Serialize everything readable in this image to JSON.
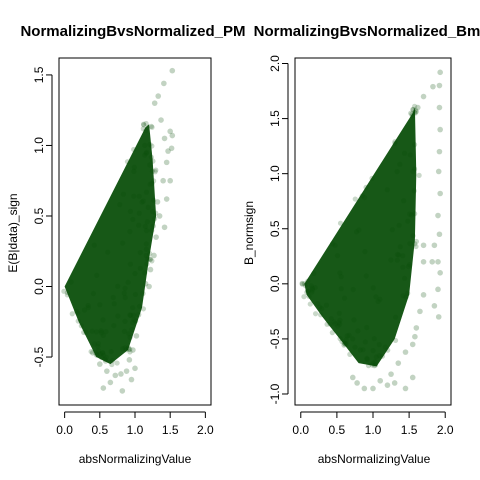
{
  "chart_data": [
    {
      "type": "scatter",
      "title": "NormalizingBvsNormalized_PM",
      "xlabel": "absNormalizingValue",
      "ylabel": "E(B|data)_sign",
      "xlim": [
        -0.08,
        2.08
      ],
      "ylim": [
        -0.84,
        1.62
      ],
      "xticks": [
        "0.0",
        "0.5",
        "1.0",
        "1.5",
        "2.0"
      ],
      "yticks": [
        "-0.5",
        "0.0",
        "0.5",
        "1.0",
        "1.5"
      ],
      "point_color": "#0b4f0b",
      "dense_region": {
        "description": "dense cloud between lines",
        "polygon": [
          [
            0.0,
            0.0
          ],
          [
            1.15,
            1.13
          ],
          [
            1.2,
            1.15
          ],
          [
            1.25,
            0.9
          ],
          [
            1.3,
            0.5
          ],
          [
            1.2,
            0.2
          ],
          [
            1.1,
            -0.15
          ],
          [
            0.9,
            -0.45
          ],
          [
            0.65,
            -0.55
          ],
          [
            0.45,
            -0.5
          ],
          [
            0.2,
            -0.25
          ],
          [
            0.0,
            0.0
          ]
        ]
      },
      "points": [
        [
          1.28,
          1.3
        ],
        [
          1.33,
          1.35
        ],
        [
          1.41,
          1.44
        ],
        [
          1.53,
          1.53
        ],
        [
          1.37,
          1.18
        ],
        [
          1.42,
          1.05
        ],
        [
          1.5,
          1.1
        ],
        [
          1.52,
          0.98
        ],
        [
          1.45,
          0.88
        ],
        [
          1.4,
          0.75
        ],
        [
          1.5,
          0.75
        ],
        [
          1.45,
          0.62
        ],
        [
          1.35,
          0.5
        ],
        [
          1.42,
          0.42
        ],
        [
          1.3,
          0.35
        ],
        [
          1.22,
          0.12
        ],
        [
          1.15,
          0.02
        ],
        [
          1.11,
          -0.05
        ],
        [
          1.05,
          -0.2
        ],
        [
          1.02,
          -0.35
        ],
        [
          0.97,
          -0.45
        ],
        [
          0.92,
          -0.52
        ],
        [
          0.88,
          -0.6
        ],
        [
          0.8,
          -0.62
        ],
        [
          0.72,
          -0.63
        ],
        [
          0.65,
          -0.68
        ],
        [
          0.6,
          -0.6
        ],
        [
          0.55,
          -0.72
        ],
        [
          0.82,
          -0.74
        ],
        [
          0.95,
          -0.66
        ],
        [
          1.0,
          -0.58
        ],
        [
          1.2,
          0.0
        ],
        [
          0.5,
          -0.55
        ],
        [
          0.4,
          -0.47
        ],
        [
          1.27,
          0.22
        ],
        [
          1.32,
          0.6
        ],
        [
          1.47,
          0.96
        ],
        [
          1.53,
          1.07
        ]
      ]
    },
    {
      "type": "scatter",
      "title": "NormalizingBvsNormalized_BmP",
      "xlabel": "absNormalizingValue",
      "ylabel": "B_normsign",
      "xlim": [
        -0.08,
        2.08
      ],
      "ylim": [
        -1.1,
        2.05
      ],
      "xticks": [
        "0.0",
        "0.5",
        "1.0",
        "1.5",
        "2.0"
      ],
      "yticks": [
        "-1.0",
        "-0.5",
        "0.0",
        "0.5",
        "1.0",
        "1.5",
        "2.0"
      ],
      "point_color": "#0b4f0b",
      "dense_region": {
        "description": "dense cloud between lines",
        "polygon": [
          [
            0.05,
            0.0
          ],
          [
            1.55,
            1.55
          ],
          [
            1.58,
            1.6
          ],
          [
            1.6,
            1.0
          ],
          [
            1.58,
            0.4
          ],
          [
            1.5,
            -0.1
          ],
          [
            1.3,
            -0.5
          ],
          [
            1.05,
            -0.75
          ],
          [
            0.8,
            -0.72
          ],
          [
            0.6,
            -0.55
          ],
          [
            0.3,
            -0.3
          ],
          [
            0.08,
            -0.1
          ],
          [
            0.05,
            0.0
          ]
        ]
      },
      "points": [
        [
          1.62,
          1.6
        ],
        [
          1.7,
          1.7
        ],
        [
          1.83,
          1.79
        ],
        [
          1.93,
          1.92
        ],
        [
          1.92,
          1.8
        ],
        [
          1.92,
          1.6
        ],
        [
          1.93,
          1.4
        ],
        [
          1.92,
          1.2
        ],
        [
          1.91,
          1.02
        ],
        [
          1.93,
          0.82
        ],
        [
          1.9,
          0.62
        ],
        [
          1.92,
          0.45
        ],
        [
          1.85,
          0.35
        ],
        [
          1.9,
          0.2
        ],
        [
          1.82,
          0.2
        ],
        [
          1.93,
          0.1
        ],
        [
          1.9,
          -0.05
        ],
        [
          1.85,
          -0.2
        ],
        [
          1.91,
          -0.3
        ],
        [
          1.7,
          0.2
        ],
        [
          1.7,
          0.35
        ],
        [
          1.7,
          -0.1
        ],
        [
          1.65,
          -0.25
        ],
        [
          1.6,
          -0.4
        ],
        [
          1.55,
          -0.55
        ],
        [
          1.45,
          -0.62
        ],
        [
          1.35,
          -0.72
        ],
        [
          1.25,
          -0.82
        ],
        [
          1.2,
          -0.92
        ],
        [
          1.1,
          -0.88
        ],
        [
          1.0,
          -0.95
        ],
        [
          0.88,
          -0.95
        ],
        [
          0.78,
          -0.9
        ],
        [
          0.72,
          -0.85
        ],
        [
          1.3,
          -0.9
        ],
        [
          1.55,
          -0.85
        ],
        [
          1.45,
          -0.95
        ],
        [
          1.58,
          -0.48
        ]
      ]
    }
  ]
}
